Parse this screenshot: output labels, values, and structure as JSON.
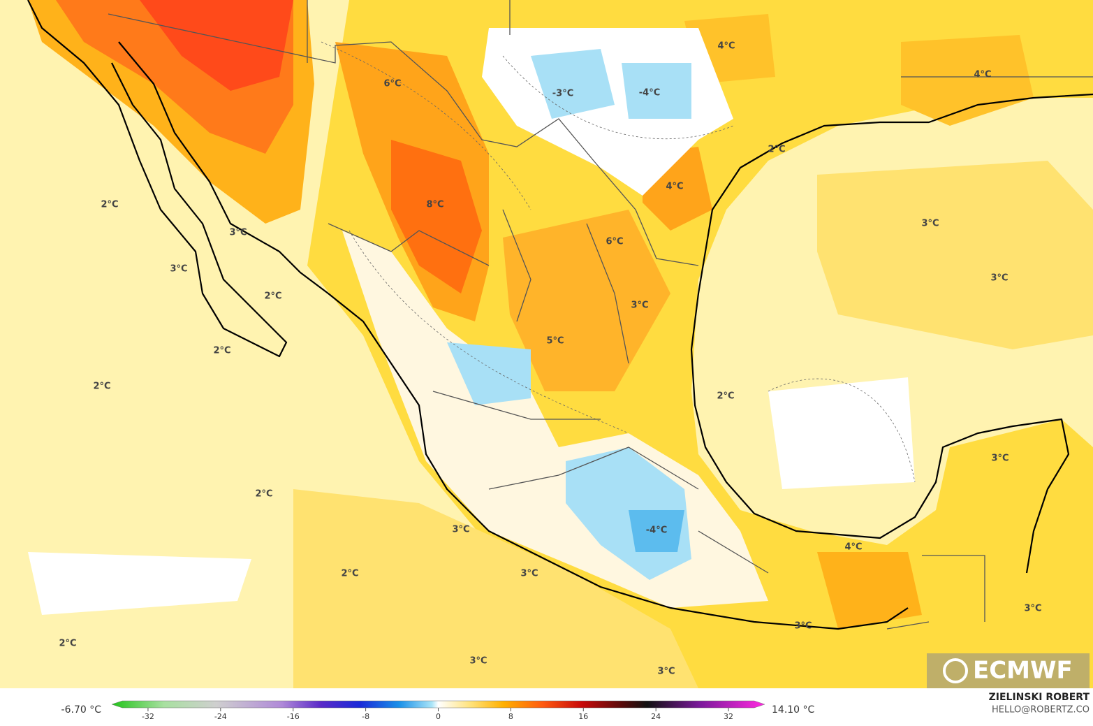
{
  "map": {
    "labels": [
      "4°C",
      "4°C",
      "6°C",
      "-3°C",
      "-4°C",
      "2°C",
      "4°C",
      "8°C",
      "2°C",
      "3°C",
      "3°C",
      "6°C",
      "3°C",
      "3°C",
      "2°C",
      "3°C",
      "5°C",
      "2°C",
      "2°C",
      "2°C",
      "3°C",
      "2°C",
      "3°C",
      "-4°C",
      "4°C",
      "2°C",
      "3°C",
      "3°C",
      "3°C",
      "2°C",
      "3°C",
      "3°C"
    ],
    "watermark": "ECMWF"
  },
  "colorbar": {
    "min_label": "-6.70 °C",
    "max_label": "14.10 °C",
    "range": [
      -36,
      36
    ],
    "ticks": [
      -32,
      -24,
      -16,
      -8,
      0,
      8,
      16,
      24,
      32
    ]
  },
  "credit": {
    "author": "ZIELINSKI ROBERT",
    "contact": "HELLO@ROBERTZ.CO"
  }
}
